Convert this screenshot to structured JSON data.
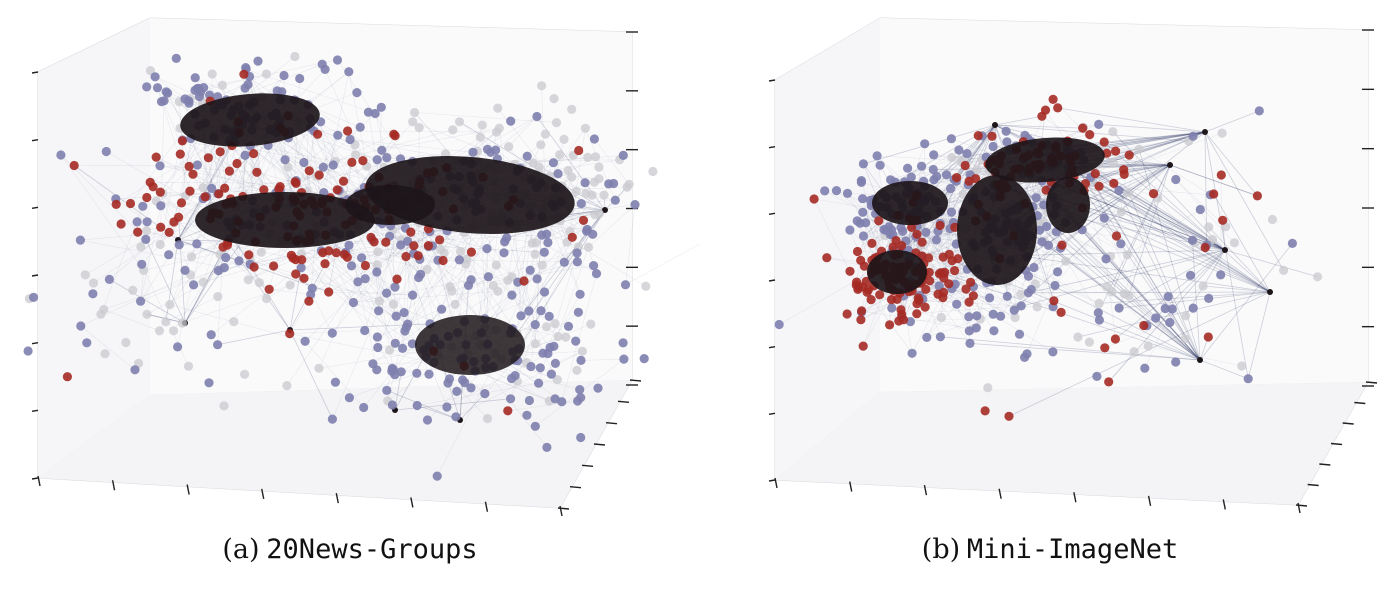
{
  "figure": {
    "panels": [
      {
        "letter": "(a)",
        "name": "20News-Groups"
      },
      {
        "letter": "(b)",
        "name": "Mini-ImageNet"
      }
    ]
  },
  "colors": {
    "purple_nodes": "#7e7fae",
    "red_nodes": "#a52a24",
    "gray_nodes": "#c9cacf",
    "dense_core": "#1c1519",
    "edges": "#2c3566",
    "grid": "#d7d9de"
  },
  "chart_data": [
    {
      "type": "scatter",
      "title": "",
      "projection": "3d",
      "grid": true,
      "tick_labels": false,
      "series": [
        {
          "color": "#7e7fae"
        },
        {
          "color": "#a52a24"
        },
        {
          "color": "#c9cacf"
        }
      ],
      "edges": true
    },
    {
      "type": "scatter",
      "title": "",
      "projection": "3d",
      "grid": true,
      "tick_labels": false,
      "series": [
        {
          "color": "#7e7fae"
        },
        {
          "color": "#a52a24"
        },
        {
          "color": "#c9cacf"
        }
      ],
      "edges": true
    }
  ]
}
